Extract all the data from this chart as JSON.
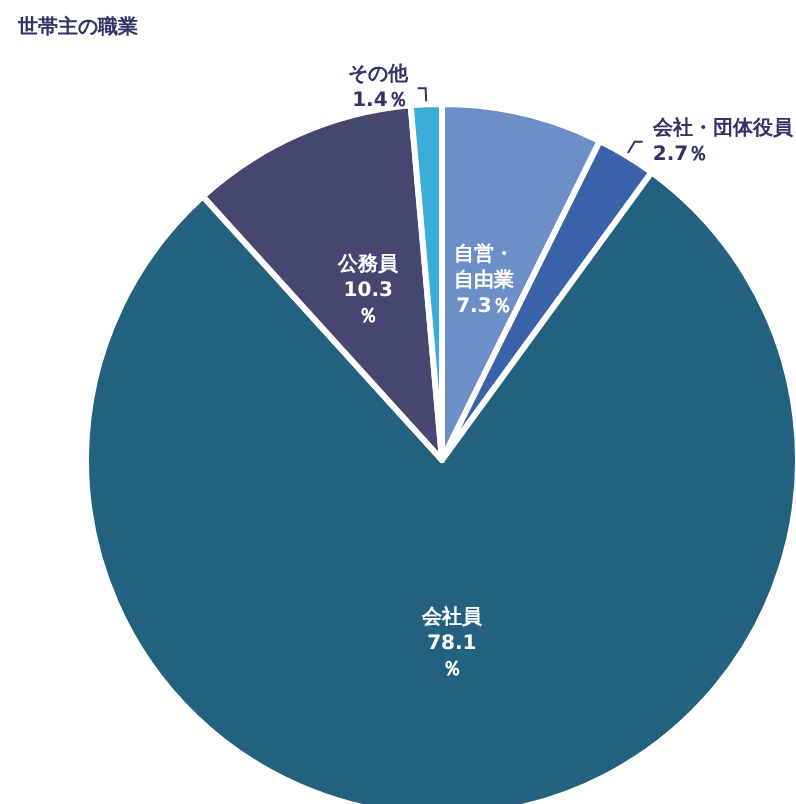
{
  "chart_data": {
    "type": "pie",
    "title": "世帯主の職業",
    "categories": [
      "自営・自由業",
      "会社・団体役員",
      "会社員",
      "公務員",
      "その他"
    ],
    "values": [
      7.3,
      2.7,
      78.1,
      10.3,
      1.4
    ],
    "value_labels": [
      "7.3％",
      "2.7％",
      "78.1％",
      "10.3％",
      "1.4％"
    ],
    "colors": [
      "#6b8fc6",
      "#3a62a8",
      "#236181",
      "#464771",
      "#3aaed8"
    ],
    "legend": false
  }
}
